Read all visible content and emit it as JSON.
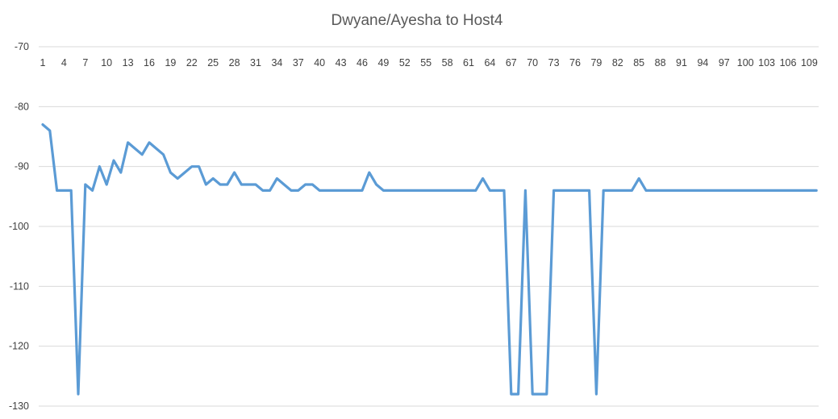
{
  "chart_data": {
    "type": "line",
    "title": "Dwyane/Ayesha to Host4",
    "xlabel": "",
    "ylabel": "",
    "ylim": [
      -130,
      -70
    ],
    "y_ticks": [
      -70,
      -80,
      -90,
      -100,
      -110,
      -120,
      -130
    ],
    "x_axis_position": "top",
    "grid": true,
    "legend": "none",
    "color": "#5b9bd5",
    "x": [
      1,
      2,
      3,
      4,
      5,
      6,
      7,
      8,
      9,
      10,
      11,
      12,
      13,
      14,
      15,
      16,
      17,
      18,
      19,
      20,
      21,
      22,
      23,
      24,
      25,
      26,
      27,
      28,
      29,
      30,
      31,
      32,
      33,
      34,
      35,
      36,
      37,
      38,
      39,
      40,
      41,
      42,
      43,
      44,
      45,
      46,
      47,
      48,
      49,
      50,
      51,
      52,
      53,
      54,
      55,
      56,
      57,
      58,
      59,
      60,
      61,
      62,
      63,
      64,
      65,
      66,
      67,
      68,
      69,
      70,
      71,
      72,
      73,
      74,
      75,
      76,
      77,
      78,
      79,
      80,
      81,
      82,
      83,
      84,
      85,
      86,
      87,
      88,
      89,
      90,
      91,
      92,
      93,
      94,
      95,
      96,
      97,
      98,
      99,
      100,
      101,
      102,
      103,
      104,
      105,
      106,
      107,
      108,
      109,
      110
    ],
    "x_tick_labels": [
      "1",
      "4",
      "7",
      "10",
      "13",
      "16",
      "19",
      "22",
      "25",
      "28",
      "31",
      "34",
      "37",
      "40",
      "43",
      "46",
      "49",
      "52",
      "55",
      "58",
      "61",
      "64",
      "67",
      "70",
      "73",
      "76",
      "79",
      "82",
      "85",
      "88",
      "91",
      "94",
      "97",
      "100",
      "103",
      "106",
      "109"
    ],
    "series": [
      {
        "values": [
          -83,
          -84,
          -94,
          -94,
          -94,
          -128,
          -93,
          -94,
          -90,
          -93,
          -89,
          -91,
          -86,
          -87,
          -88,
          -86,
          -87,
          -88,
          -91,
          -92,
          -91,
          -90,
          -90,
          -93,
          -92,
          -93,
          -93,
          -91,
          -93,
          -93,
          -93,
          -94,
          -94,
          -92,
          -93,
          -94,
          -94,
          -93,
          -93,
          -94,
          -94,
          -94,
          -94,
          -94,
          -94,
          -94,
          -91,
          -93,
          -94,
          -94,
          -94,
          -94,
          -94,
          -94,
          -94,
          -94,
          -94,
          -94,
          -94,
          -94,
          -94,
          -94,
          -92,
          -94,
          -94,
          -94,
          -128,
          -128,
          -94,
          -128,
          -128,
          -128,
          -94,
          -94,
          -94,
          -94,
          -94,
          -94,
          -128,
          -94,
          -94,
          -94,
          -94,
          -94,
          -92,
          -94,
          -94,
          -94,
          -94,
          -94,
          -94,
          -94,
          -94,
          -94,
          -94,
          -94,
          -94,
          -94,
          -94,
          -94,
          -94,
          -94,
          -94,
          -94,
          -94,
          -94,
          -94,
          -94,
          -94,
          -94
        ]
      }
    ]
  }
}
